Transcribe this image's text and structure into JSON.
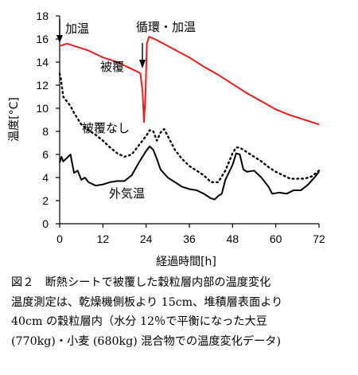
{
  "chart_data": {
    "type": "line",
    "xlabel": "経過時間[h]",
    "ylabel": "温度[°C]",
    "xlim": [
      0,
      72
    ],
    "ylim": [
      0,
      18
    ],
    "xticks": [
      "0",
      "12",
      "24",
      "36",
      "48",
      "60",
      "72"
    ],
    "yticks": [
      "0",
      "2",
      "4",
      "6",
      "8",
      "10",
      "12",
      "14",
      "16",
      "18"
    ],
    "grid": false,
    "annotations": [
      "加温",
      "循環・加温"
    ],
    "series": [
      {
        "name": "被覆",
        "color": "#ee1c1c",
        "style": "solid",
        "points": [
          [
            0,
            15.4
          ],
          [
            2,
            15.6
          ],
          [
            4,
            15.4
          ],
          [
            6,
            15.2
          ],
          [
            8,
            15.0
          ],
          [
            10,
            14.7
          ],
          [
            12,
            14.4
          ],
          [
            14,
            14.2
          ],
          [
            16,
            14.0
          ],
          [
            18,
            13.7
          ],
          [
            20,
            13.4
          ],
          [
            22,
            13.1
          ],
          [
            22.4,
            13.0
          ],
          [
            23,
            11.5
          ],
          [
            23.4,
            8.8
          ],
          [
            23.8,
            11.0
          ],
          [
            24.2,
            15.6
          ],
          [
            24.8,
            16.2
          ],
          [
            27,
            15.9
          ],
          [
            30,
            15.4
          ],
          [
            33,
            14.9
          ],
          [
            36,
            14.4
          ],
          [
            40,
            13.6
          ],
          [
            44,
            12.9
          ],
          [
            48,
            12.1
          ],
          [
            52,
            11.3
          ],
          [
            56,
            10.6
          ],
          [
            60,
            9.9
          ],
          [
            64,
            9.4
          ],
          [
            68,
            9.0
          ],
          [
            72,
            8.6
          ]
        ]
      },
      {
        "name": "被覆なし",
        "color": "#000000",
        "style": "dotted",
        "points": [
          [
            0,
            13.0
          ],
          [
            0.3,
            12.6
          ],
          [
            1,
            11.0
          ],
          [
            2,
            10.6
          ],
          [
            3,
            10.2
          ],
          [
            4,
            9.6
          ],
          [
            6,
            8.6
          ],
          [
            8,
            8.1
          ],
          [
            10,
            7.7
          ],
          [
            12,
            7.2
          ],
          [
            14,
            6.6
          ],
          [
            16,
            6.1
          ],
          [
            18,
            5.8
          ],
          [
            20,
            6.0
          ],
          [
            22,
            6.8
          ],
          [
            24,
            7.6
          ],
          [
            25,
            8.1
          ],
          [
            26,
            8.0
          ],
          [
            27,
            7.2
          ],
          [
            28,
            7.9
          ],
          [
            29,
            8.2
          ],
          [
            30,
            7.6
          ],
          [
            32,
            6.4
          ],
          [
            34,
            5.6
          ],
          [
            36,
            5.0
          ],
          [
            38,
            4.6
          ],
          [
            40,
            4.2
          ],
          [
            42,
            3.6
          ],
          [
            44,
            3.6
          ],
          [
            46,
            4.6
          ],
          [
            48,
            6.1
          ],
          [
            49,
            6.6
          ],
          [
            50,
            6.6
          ],
          [
            52,
            6.2
          ],
          [
            54,
            5.8
          ],
          [
            56,
            5.4
          ],
          [
            58,
            4.9
          ],
          [
            60,
            4.5
          ],
          [
            62,
            4.2
          ],
          [
            64,
            3.9
          ],
          [
            66,
            3.9
          ],
          [
            68,
            3.9
          ],
          [
            70,
            4.1
          ],
          [
            72,
            4.6
          ]
        ]
      },
      {
        "name": "外気温",
        "color": "#000000",
        "style": "solid",
        "points": [
          [
            0,
            5.3
          ],
          [
            0.5,
            5.8
          ],
          [
            1,
            5.4
          ],
          [
            2,
            5.7
          ],
          [
            3,
            6.0
          ],
          [
            4,
            4.4
          ],
          [
            5,
            4.6
          ],
          [
            6,
            3.8
          ],
          [
            7,
            4.0
          ],
          [
            8,
            3.6
          ],
          [
            10,
            3.3
          ],
          [
            12,
            3.4
          ],
          [
            14,
            3.6
          ],
          [
            16,
            3.7
          ],
          [
            18,
            3.7
          ],
          [
            20,
            4.2
          ],
          [
            22,
            5.3
          ],
          [
            24,
            6.3
          ],
          [
            25,
            6.7
          ],
          [
            26,
            6.4
          ],
          [
            27,
            5.6
          ],
          [
            28,
            4.7
          ],
          [
            30,
            4.0
          ],
          [
            32,
            3.6
          ],
          [
            34,
            3.2
          ],
          [
            36,
            3.0
          ],
          [
            38,
            2.9
          ],
          [
            40,
            2.6
          ],
          [
            42,
            2.2
          ],
          [
            43,
            2.1
          ],
          [
            44,
            2.4
          ],
          [
            45,
            2.6
          ],
          [
            46,
            3.8
          ],
          [
            48,
            5.1
          ],
          [
            49,
            6.1
          ],
          [
            50,
            6.0
          ],
          [
            51,
            4.7
          ],
          [
            52,
            4.5
          ],
          [
            54,
            4.6
          ],
          [
            56,
            4.0
          ],
          [
            58,
            3.2
          ],
          [
            59,
            2.6
          ],
          [
            61,
            2.7
          ],
          [
            63,
            2.6
          ],
          [
            65,
            2.9
          ],
          [
            67,
            2.9
          ],
          [
            69,
            3.4
          ],
          [
            71,
            4.1
          ],
          [
            72,
            4.5
          ]
        ]
      }
    ]
  },
  "caption": {
    "line1": "図２　断熱シートで被覆した穀粒層内部の温度変化",
    "line2": "温度測定は、乾燥機側板より 15cm、堆積層表面より",
    "line3": "40cm の穀粒層内（水分 12％で平衡になった大豆",
    "line4": "(770kg)・小麦 (680kg) 混合物での温度変化データ)"
  }
}
